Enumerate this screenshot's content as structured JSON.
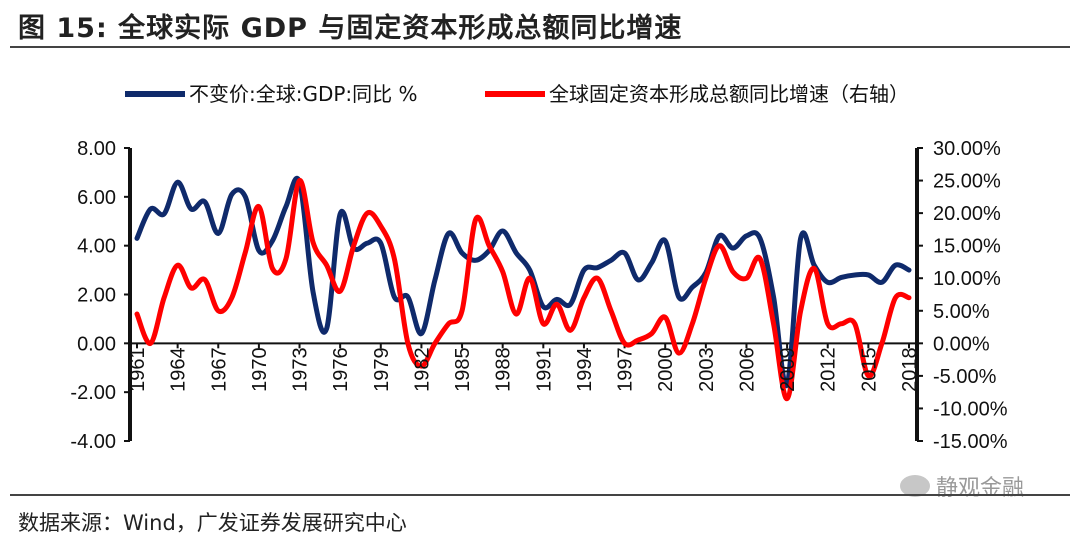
{
  "header": {
    "title": "图 15:  全球实际 GDP 与固定资本形成总额同比增速"
  },
  "footer": {
    "source": "数据来源：Wind，广发证券发展研究中心"
  },
  "watermark": {
    "text": "静观金融"
  },
  "colors": {
    "gdp": "#0f2a6b",
    "capital": "#ff0000"
  },
  "chart_data": {
    "type": "line",
    "x": [
      1961,
      1962,
      1963,
      1964,
      1965,
      1966,
      1967,
      1968,
      1969,
      1970,
      1971,
      1972,
      1973,
      1974,
      1975,
      1976,
      1977,
      1978,
      1979,
      1980,
      1981,
      1982,
      1983,
      1984,
      1985,
      1986,
      1987,
      1988,
      1989,
      1990,
      1991,
      1992,
      1993,
      1994,
      1995,
      1996,
      1997,
      1998,
      1999,
      2000,
      2001,
      2002,
      2003,
      2004,
      2005,
      2006,
      2007,
      2008,
      2009,
      2010,
      2011,
      2012,
      2013,
      2014,
      2015,
      2016,
      2017,
      2018
    ],
    "xticks": [
      "1961",
      "1964",
      "1967",
      "1970",
      "1973",
      "1976",
      "1979",
      "1982",
      "1985",
      "1988",
      "1991",
      "1994",
      "1997",
      "2000",
      "2003",
      "2006",
      "2009",
      "2012",
      "2015",
      "2018"
    ],
    "y_left": {
      "ticks": [
        "8.00",
        "6.00",
        "4.00",
        "2.00",
        "0.00",
        "-2.00",
        "-4.00"
      ],
      "ylim": [
        -4,
        8
      ]
    },
    "y_right": {
      "ticks": [
        "30.00%",
        "25.00%",
        "20.00%",
        "15.00%",
        "10.00%",
        "5.00%",
        "0.00%",
        "-5.00%",
        "-10.00%",
        "-15.00%"
      ],
      "ylim": [
        -15,
        30
      ]
    },
    "series": [
      {
        "name": "不变价:全球:GDP:同比 %",
        "axis": "left",
        "values": [
          4.3,
          5.5,
          5.3,
          6.6,
          5.5,
          5.8,
          4.5,
          6.1,
          6.0,
          3.8,
          4.2,
          5.6,
          6.6,
          2.1,
          0.6,
          5.3,
          3.9,
          4.1,
          4.1,
          1.9,
          1.9,
          0.4,
          2.6,
          4.5,
          3.7,
          3.4,
          3.8,
          4.6,
          3.7,
          3.0,
          1.5,
          1.8,
          1.6,
          3.0,
          3.1,
          3.4,
          3.7,
          2.6,
          3.3,
          4.2,
          1.9,
          2.3,
          2.9,
          4.4,
          3.9,
          4.4,
          4.3,
          1.9,
          -1.7,
          4.3,
          3.2,
          2.5,
          2.7,
          2.8,
          2.8,
          2.5,
          3.2,
          3.0
        ]
      },
      {
        "name": "全球固定资本形成总额同比增速（右轴）",
        "axis": "right",
        "values": [
          4.5,
          0,
          7.0,
          12.0,
          8.5,
          9.8,
          5.0,
          7.0,
          14.0,
          21.0,
          11.5,
          13.0,
          25.0,
          15.5,
          12.0,
          8.0,
          15.0,
          20.0,
          18.0,
          13.0,
          0,
          -3.5,
          0,
          3.0,
          5.0,
          19.0,
          15.0,
          11.0,
          4.5,
          10.0,
          3.0,
          6.0,
          2.0,
          7.0,
          10.0,
          5.0,
          0,
          0.5,
          1.5,
          4.0,
          -1.5,
          3.0,
          10.0,
          15.0,
          11.0,
          10.0,
          13.0,
          3.0,
          -8.5,
          5.0,
          11.5,
          3.0,
          3.0,
          3.0,
          -5.0,
          0,
          7.0,
          7.0
        ]
      }
    ]
  }
}
